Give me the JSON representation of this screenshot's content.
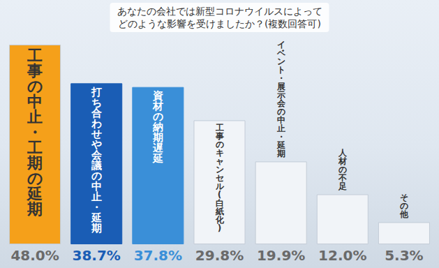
{
  "chart_data": {
    "type": "bar",
    "title": "あなたの会社では新型コロナウイルスによって\nどのような影響を受けましたか？(複数回答可)",
    "categories": [
      "工事の中止・工期の延期",
      "打ち合わせや会議の中止・延期",
      "資材の納期遅延",
      "工事のキャンセル(白紙化)",
      "イベント・展示会の中止・延期",
      "人材の不足",
      "その他"
    ],
    "values": [
      48.0,
      38.7,
      37.8,
      29.8,
      19.9,
      12.0,
      5.3
    ],
    "value_labels": [
      "48.0%",
      "38.7%",
      "37.8%",
      "29.8%",
      "19.9%",
      "12.0%",
      "5.3%"
    ],
    "colors": [
      "#f5a01a",
      "#1a5db5",
      "#3a8fd8",
      "#f1f4f8",
      "#f1f4f8",
      "#f1f4f8",
      "#f1f4f8"
    ],
    "ylim": [
      0,
      50
    ],
    "grid": false,
    "data_labels": true,
    "tick_labels": false
  }
}
